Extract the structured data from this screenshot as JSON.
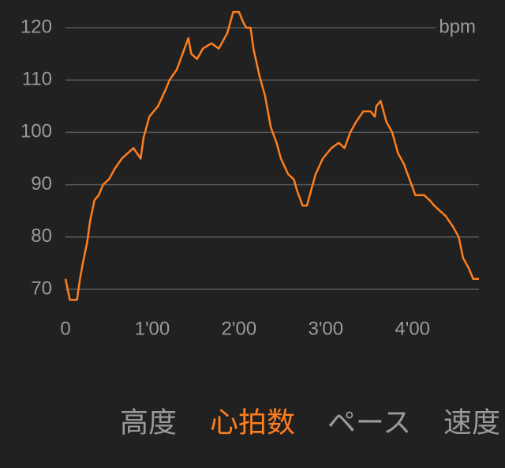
{
  "chart_data": {
    "type": "line",
    "unit_label": "bpm",
    "x": [
      0,
      3,
      8,
      10,
      12,
      15,
      17,
      20,
      23,
      26,
      30,
      34,
      39,
      47,
      52,
      54,
      58,
      64,
      69,
      72,
      77,
      81,
      85,
      87,
      91,
      95,
      101,
      106,
      112,
      116,
      120,
      123,
      125,
      128,
      130,
      134,
      138,
      142,
      146,
      149,
      154,
      158,
      160,
      164,
      167,
      170,
      173,
      178,
      184,
      189,
      193,
      197,
      201,
      206,
      211,
      214,
      215,
      218,
      222,
      226,
      230,
      234,
      238,
      242,
      248,
      252,
      255,
      259,
      263,
      268,
      272,
      275,
      279,
      282,
      286
    ],
    "series": [
      {
        "name": "心拍数",
        "color": "#ff7f1e",
        "values": [
          72,
          68,
          68,
          72,
          75,
          79,
          83,
          87,
          88,
          90,
          91,
          93,
          95,
          97,
          95,
          99,
          103,
          105,
          108,
          110,
          112,
          115,
          118,
          115,
          114,
          116,
          117,
          116,
          119,
          123,
          123,
          121,
          120,
          120,
          116,
          111,
          107,
          101,
          98,
          95,
          92,
          91,
          89,
          86,
          86,
          89,
          92,
          95,
          97,
          98,
          97,
          100,
          102,
          104,
          104,
          103,
          105,
          106,
          102,
          100,
          96,
          94,
          91,
          88,
          88,
          87,
          86,
          85,
          84,
          82,
          80,
          76,
          74,
          72,
          72
        ]
      }
    ],
    "xlim": [
      0,
      286
    ],
    "ylim": [
      70,
      120
    ],
    "xticks": [
      0,
      {
        "value": 60,
        "label": "1'00"
      },
      {
        "value": 120,
        "label": "2'00"
      },
      {
        "value": 180,
        "label": "3'00"
      },
      {
        "value": 240,
        "label": "4'00"
      }
    ],
    "yticks": [
      70,
      80,
      90,
      100,
      110,
      120
    ],
    "grid": true,
    "tabs": [
      {
        "label": "高度",
        "active": false
      },
      {
        "label": "心拍数",
        "active": true
      },
      {
        "label": "ペース",
        "active": false
      },
      {
        "label": "速度",
        "active": false
      }
    ]
  }
}
